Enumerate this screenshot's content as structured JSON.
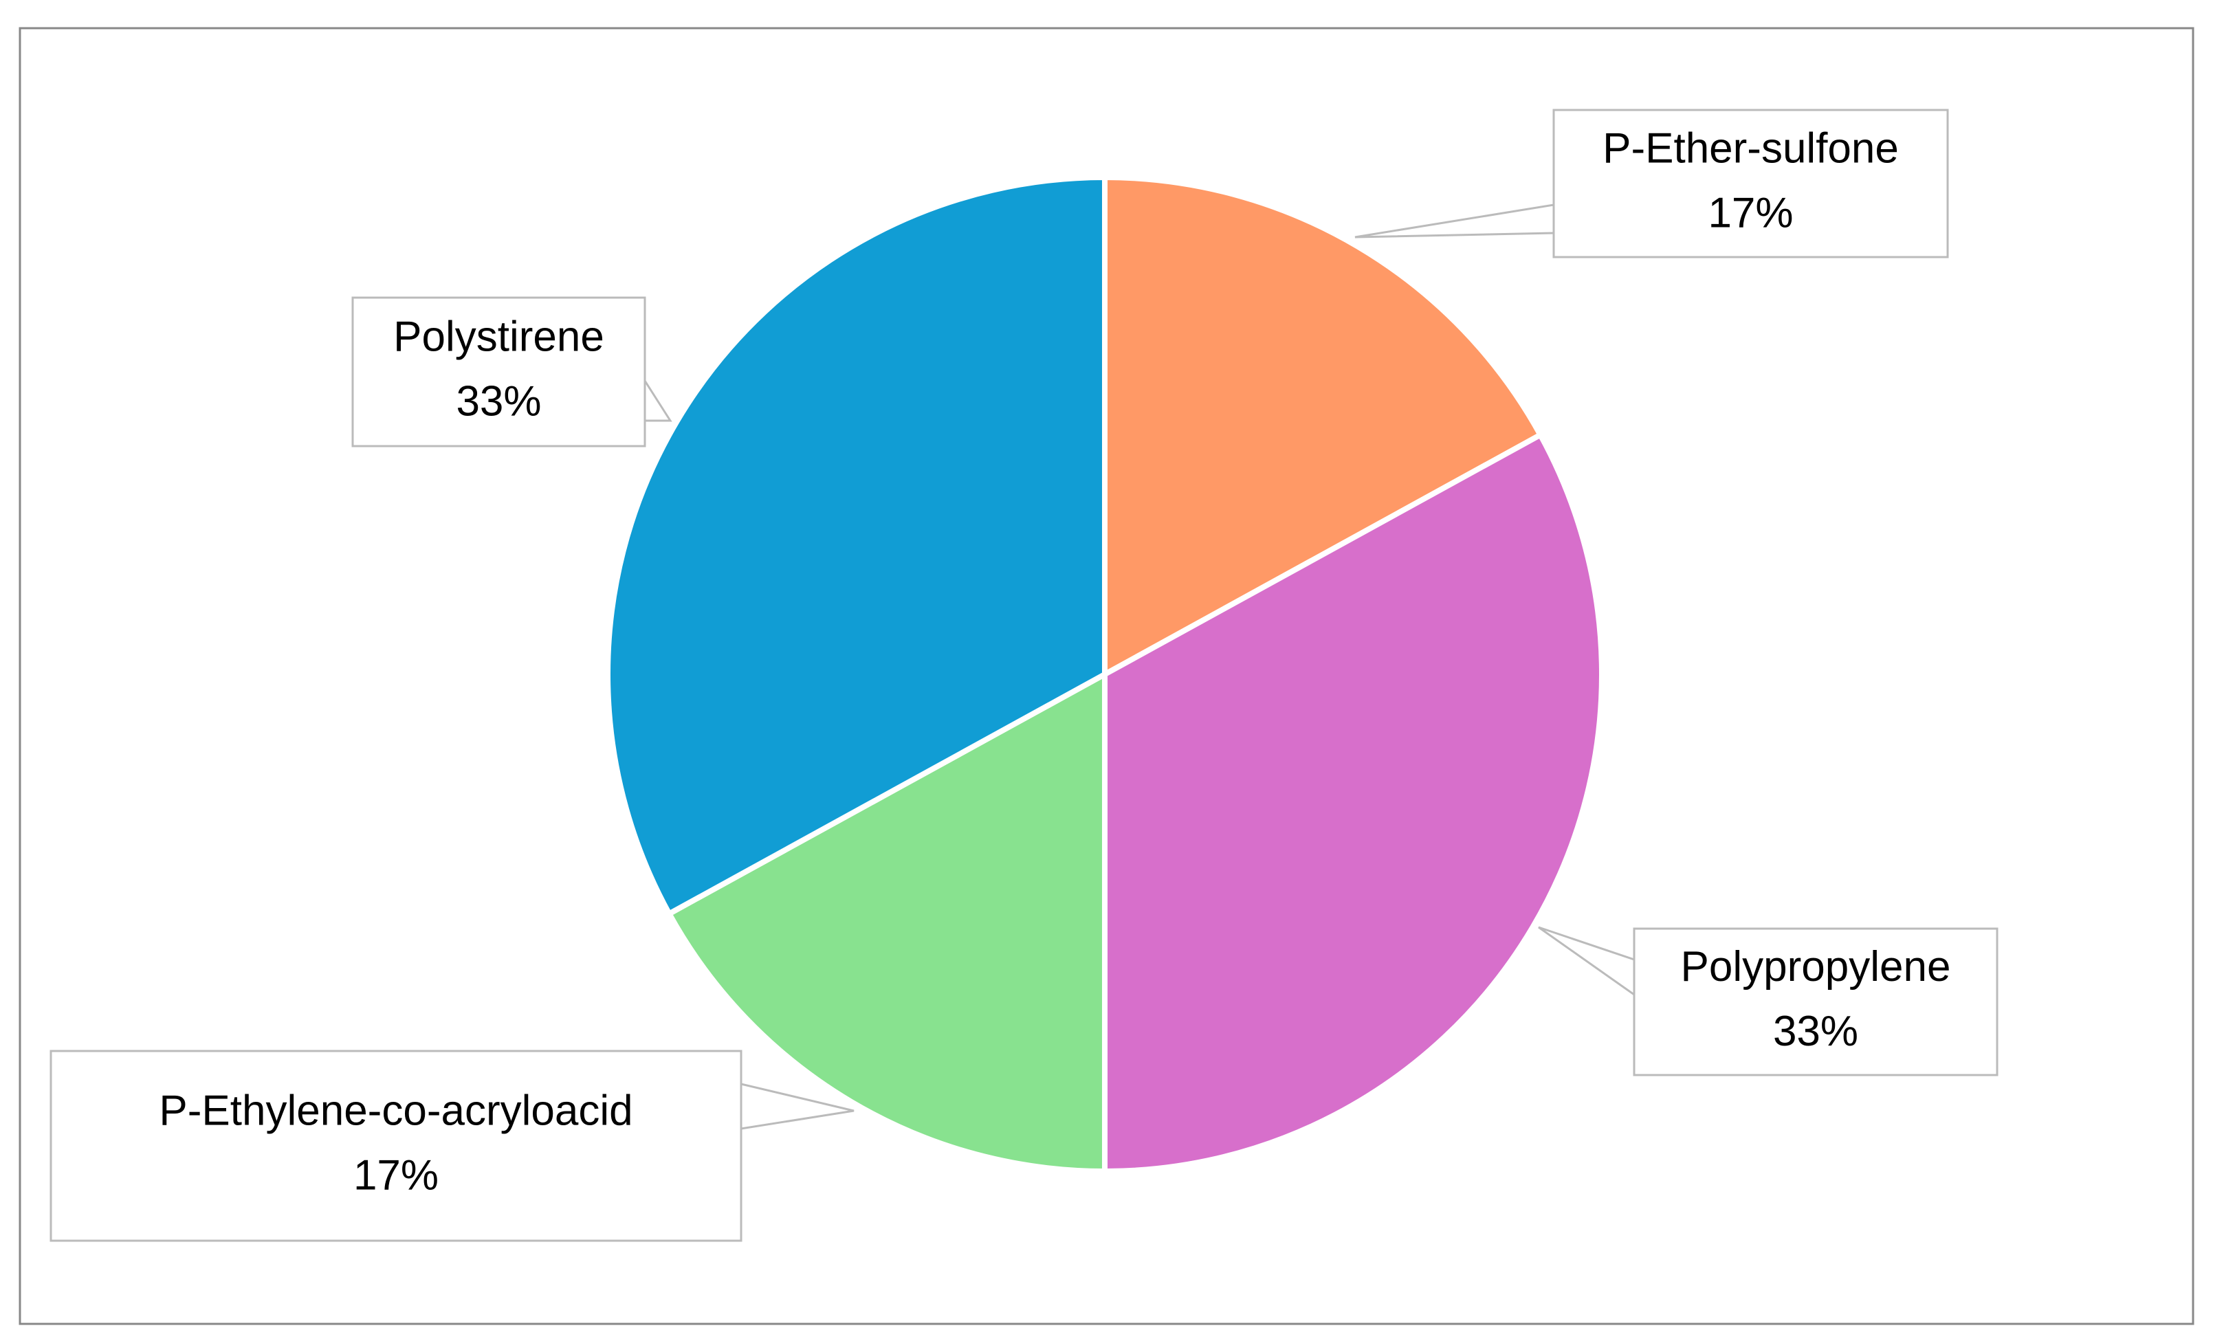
{
  "chart_data": {
    "type": "pie",
    "categories": [
      "P-Ether-sulfone",
      "Polypropylene",
      "P-Ethylene-co-acryloacid",
      "Polystirene"
    ],
    "values": [
      17,
      33,
      17,
      33
    ],
    "value_labels": [
      "17%",
      "33%",
      "17%",
      "33%"
    ],
    "colors": [
      "#FF9966",
      "#D76FCB",
      "#88E28F",
      "#119DD4"
    ]
  }
}
